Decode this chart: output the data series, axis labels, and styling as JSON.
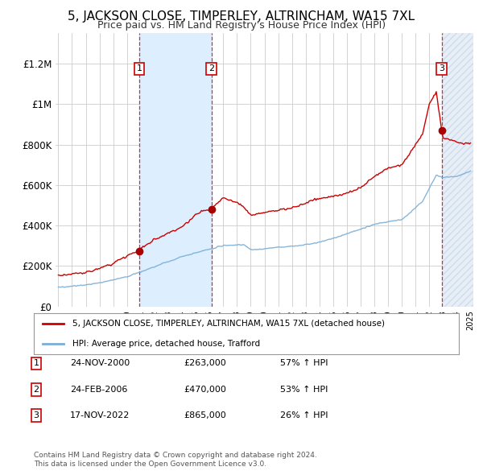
{
  "title": "5, JACKSON CLOSE, TIMPERLEY, ALTRINCHAM, WA15 7XL",
  "subtitle": "Price paid vs. HM Land Registry's House Price Index (HPI)",
  "yticks": [
    0,
    200000,
    400000,
    600000,
    800000,
    1000000,
    1200000
  ],
  "ytick_labels": [
    "£0",
    "£200K",
    "£400K",
    "£600K",
    "£800K",
    "£1M",
    "£1.2M"
  ],
  "ylim": [
    0,
    1350000
  ],
  "xlim": [
    1994.8,
    2025.2
  ],
  "sale_color": "#cc0000",
  "hpi_color": "#7aaed6",
  "sale_label": "5, JACKSON CLOSE, TIMPERLEY, ALTRINCHAM, WA15 7XL (detached house)",
  "hpi_label": "HPI: Average price, detached house, Trafford",
  "transactions": [
    {
      "id": 1,
      "date": "24-NOV-2000",
      "year": 2000.9,
      "price": 263000,
      "price_str": "£263,000",
      "pct": "57%",
      "dir": "↑"
    },
    {
      "id": 2,
      "date": "24-FEB-2006",
      "year": 2006.15,
      "price": 470000,
      "price_str": "£470,000",
      "pct": "53%",
      "dir": "↑"
    },
    {
      "id": 3,
      "date": "17-NOV-2022",
      "year": 2022.9,
      "price": 865000,
      "price_str": "£865,000",
      "pct": "26%",
      "dir": "↑"
    }
  ],
  "footer_line1": "Contains HM Land Registry data © Crown copyright and database right 2024.",
  "footer_line2": "This data is licensed under the Open Government Licence v3.0.",
  "background_color": "#ffffff",
  "shade_color": "#ddeeff",
  "hatch_color": "#e8eef5"
}
